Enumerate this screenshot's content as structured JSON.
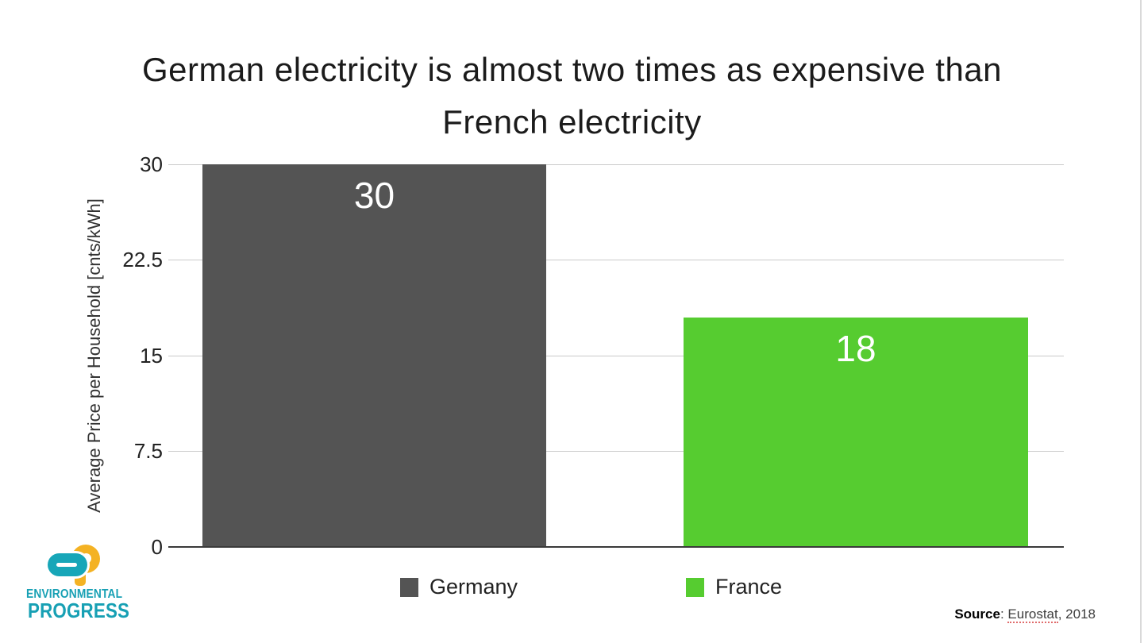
{
  "title": {
    "full": "German electricity is almost two times as expensive than French electricity",
    "lines": [
      "German electricity is almost two times as expensive than",
      "French electricity"
    ]
  },
  "chart_data": {
    "type": "bar",
    "title": "German electricity is almost two times as expensive than French electricity",
    "categories": [
      "Germany",
      "France"
    ],
    "values": [
      30,
      18
    ],
    "bar_labels": [
      "30",
      "18"
    ],
    "colors": [
      "#545454",
      "#56cc30"
    ],
    "xlabel": "",
    "ylabel": "Average Price per Household [cnts/kWh]",
    "ylim": [
      0,
      30
    ],
    "yticks": [
      {
        "value": 30,
        "label": "30"
      },
      {
        "value": 22.5,
        "label": "22.5"
      },
      {
        "value": 15,
        "label": "15"
      },
      {
        "value": 7.5,
        "label": "7.5"
      },
      {
        "value": 0,
        "label": "0"
      }
    ],
    "grid": "horizontal",
    "legend": {
      "position": "bottom",
      "entries": [
        {
          "label": "Germany",
          "color": "#545454"
        },
        {
          "label": "France",
          "color": "#56cc30"
        }
      ]
    }
  },
  "source": {
    "prefix": "Source",
    "separator": ": ",
    "link": "Eurostat",
    "suffix": ", 2018"
  },
  "logo": {
    "line1": "ENVIRONMENTAL",
    "line2": "PROGRESS",
    "teal": "#17a6b8",
    "yellow": "#f4b223"
  },
  "page": {
    "background": "#ffffff",
    "right_edge_line_color": "#d9d9d9",
    "gridline_color": "#cacaca",
    "axis_color": "#3a3a3a"
  }
}
